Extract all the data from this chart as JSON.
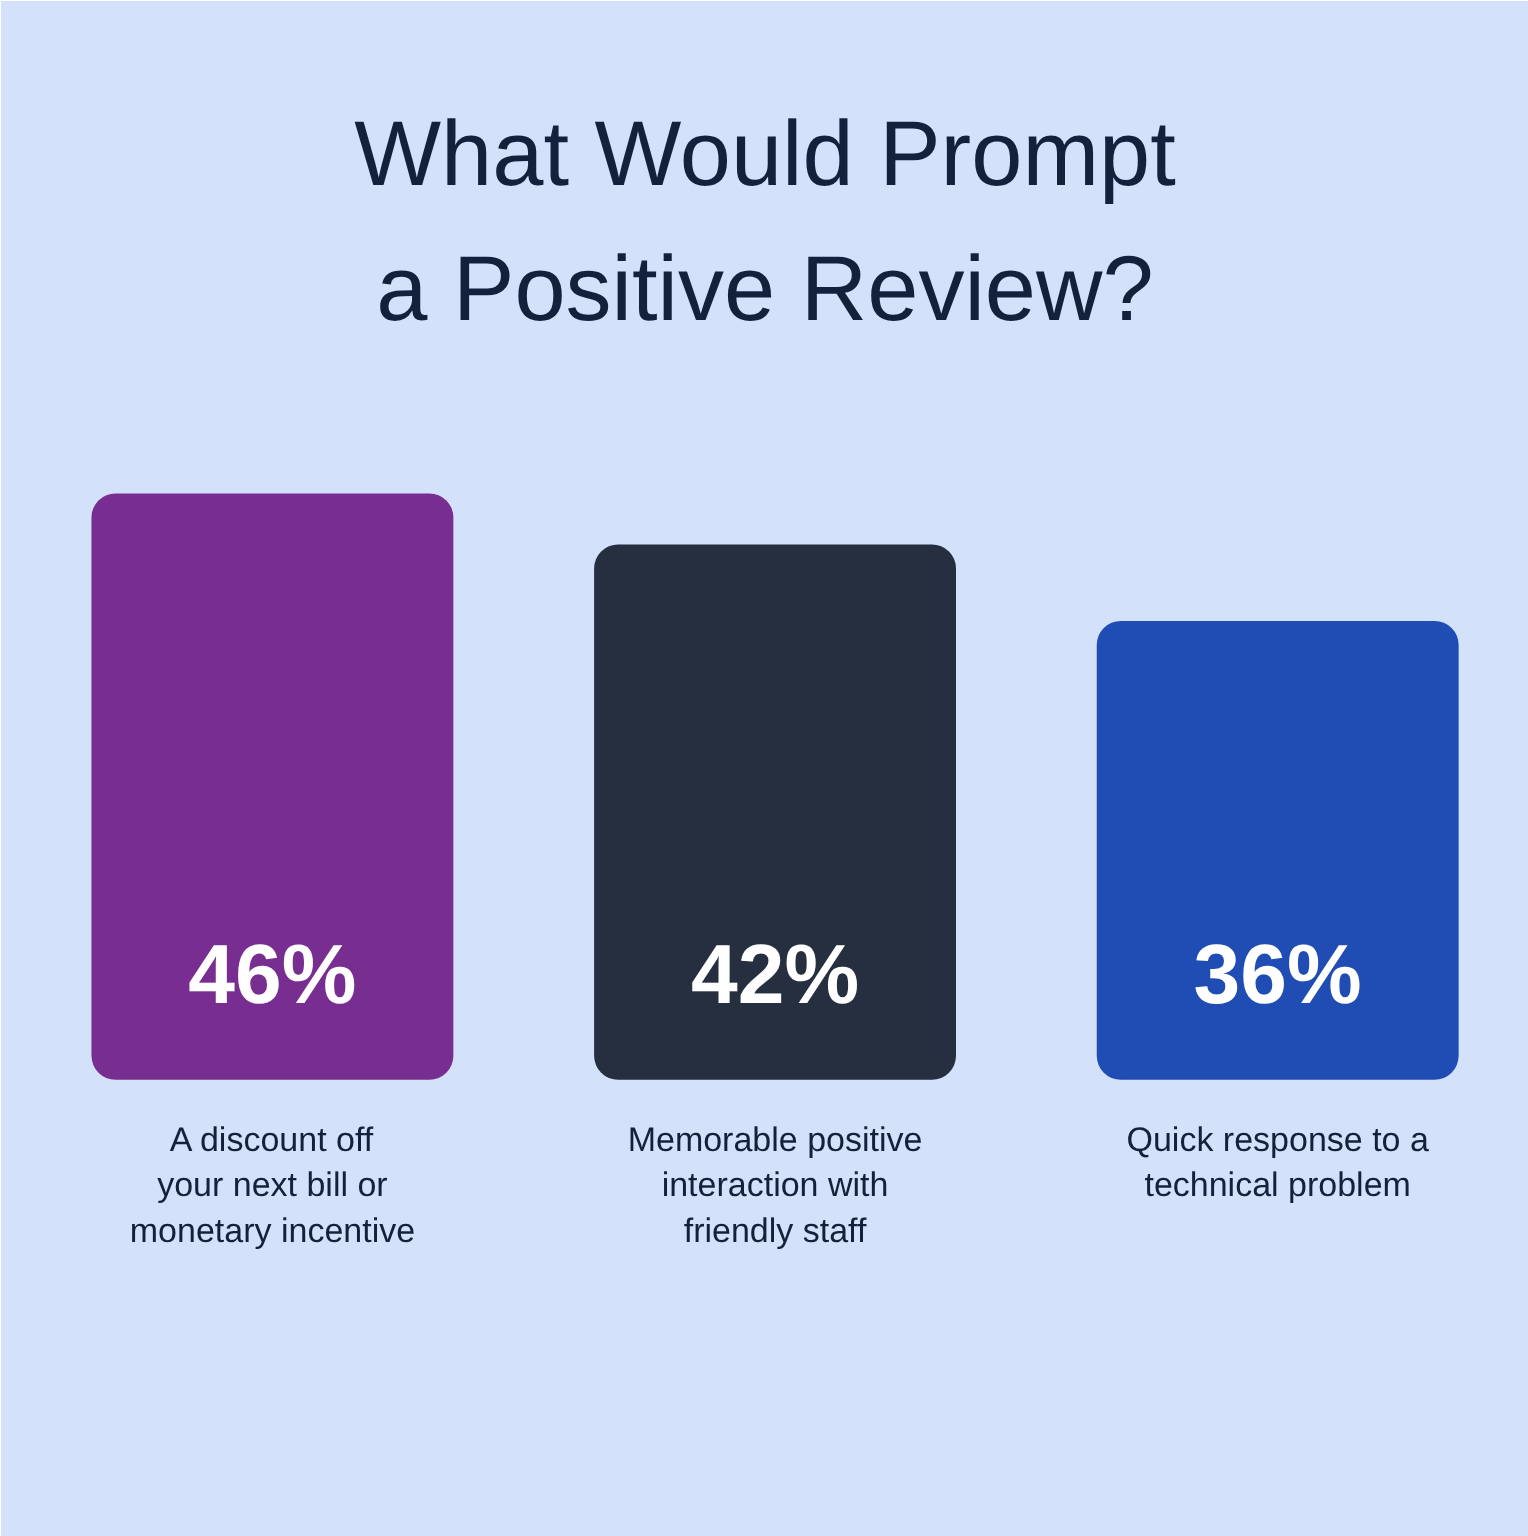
{
  "chart_data": {
    "type": "bar",
    "title": "What Would Prompt\na Positive Review?",
    "categories": [
      "A discount off\nyour next bill or\nmonetary incentive",
      "Memorable positive\ninteraction with\nfriendly staff",
      "Quick response to a\ntechnical problem"
    ],
    "values": [
      46,
      42,
      36
    ],
    "colors": [
      "#782d91",
      "#252f3f",
      "#1f4db3"
    ],
    "value_labels": [
      "46%",
      "42%",
      "36%"
    ]
  }
}
